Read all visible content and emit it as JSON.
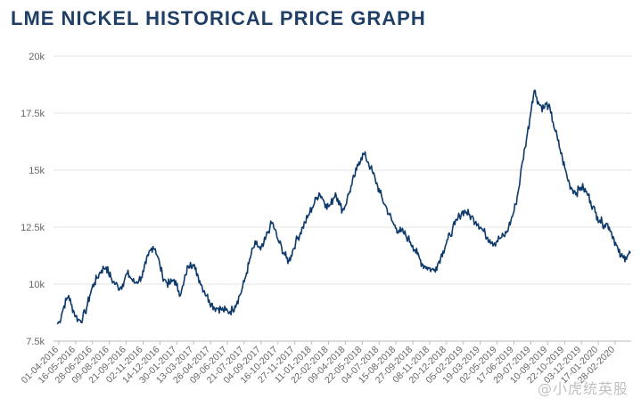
{
  "title": "LME NICKEL HISTORICAL PRICE GRAPH",
  "watermark": "@小虎统英股",
  "colors": {
    "line": "#0e3a6b",
    "title": "#1f3f66",
    "grid": "#e3e3e3",
    "axis_text": "#666666"
  },
  "chart_data": {
    "type": "line",
    "title": "LME NICKEL HISTORICAL PRICE GRAPH",
    "xlabel": "",
    "ylabel": "",
    "ylim": [
      7500,
      20000
    ],
    "y_ticks": [
      "7.5k",
      "10k",
      "12.5k",
      "15k",
      "17.5k",
      "20k"
    ],
    "y_tick_values": [
      7500,
      10000,
      12500,
      15000,
      17500,
      20000
    ],
    "grid": "horizontal",
    "legend": "none",
    "x_tick_labels": [
      "01-04-2016",
      "16-05-2016",
      "28-06-2016",
      "09-08-2016",
      "21-09-2016",
      "02-11-2016",
      "14-12-2016",
      "30-01-2017",
      "13-03-2017",
      "26-04-2017",
      "09-06-2017",
      "21-07-2017",
      "04-09-2017",
      "16-10-2017",
      "27-11-2017",
      "11-01-2018",
      "22-02-2018",
      "09-04-2018",
      "22-05-2018",
      "04-07-2018",
      "15-08-2018",
      "27-09-2018",
      "08-11-2018",
      "20-12-2018",
      "05-02-2019",
      "19-03-2019",
      "02-05-2019",
      "17-06-2019",
      "29-07-2019",
      "10-09-2019",
      "22-10-2019",
      "03-12-2019",
      "17-01-2020",
      "28-02-2020"
    ],
    "series": [
      {
        "values": [
          8250,
          8350,
          8700,
          9050,
          9300,
          9500,
          9100,
          8850,
          8600,
          8450,
          8400,
          8550,
          8750,
          9100,
          9500,
          9850,
          10050,
          10250,
          10450,
          10600,
          10700,
          10750,
          10500,
          10300,
          10100,
          10000,
          9900,
          9850,
          10000,
          10250,
          10450,
          10350,
          10200,
          10050,
          10100,
          10200,
          10300,
          10550,
          10900,
          11250,
          11500,
          11650,
          11550,
          11200,
          10800,
          10400,
          10200,
          10050,
          10000,
          10100,
          10200,
          9950,
          9700,
          9600,
          9950,
          10400,
          10800,
          10950,
          10850,
          10650,
          10450,
          10150,
          9900,
          9700,
          9500,
          9300,
          9150,
          9000,
          8950,
          8950,
          8900,
          8850,
          8850,
          8800,
          8800,
          8900,
          9050,
          9250,
          9500,
          9750,
          10100,
          10500,
          10900,
          11300,
          11600,
          11750,
          11650,
          11500,
          11650,
          11950,
          12250,
          12500,
          12700,
          12400,
          12050,
          11800,
          11600,
          11350,
          11150,
          11000,
          11250,
          11550,
          11850,
          12050,
          12250,
          12500,
          12700,
          12900,
          13150,
          13350,
          13550,
          13800,
          14000,
          13850,
          13650,
          13500,
          13400,
          13500,
          13750,
          14000,
          13750,
          13450,
          13250,
          13400,
          13750,
          14050,
          14350,
          14700,
          15000,
          15350,
          15550,
          15700,
          15550,
          15350,
          15100,
          14850,
          14600,
          14300,
          14000,
          13750,
          13500,
          13300,
          13050,
          12800,
          12600,
          12450,
          12350,
          12300,
          12250,
          12150,
          12000,
          11850,
          11700,
          11500,
          11300,
          11100,
          10900,
          10800,
          10750,
          10700,
          10650,
          10600,
          10750,
          10950,
          11200,
          11450,
          11700,
          11950,
          12150,
          12400,
          12600,
          12800,
          13000,
          13150,
          13200,
          13150,
          13050,
          12950,
          12850,
          12750,
          12650,
          12500,
          12350,
          12200,
          12050,
          11950,
          11850,
          11800,
          11900,
          12000,
          12050,
          12100,
          12250,
          12500,
          12800,
          13100,
          13500,
          14000,
          14700,
          15400,
          16000,
          16600,
          17200,
          18000,
          18500,
          18200,
          17900,
          17800,
          17700,
          17900,
          17800,
          17500,
          17100,
          16700,
          16300,
          15900,
          15500,
          15100,
          14700,
          14400,
          14200,
          14100,
          14000,
          14150,
          14250,
          14200,
          14050,
          13900,
          13650,
          13400,
          13150,
          12950,
          12800,
          12700,
          12600,
          12650,
          12500,
          12250,
          12000,
          11700,
          11400,
          11200,
          11150,
          11200,
          11300,
          11350
        ]
      }
    ]
  }
}
